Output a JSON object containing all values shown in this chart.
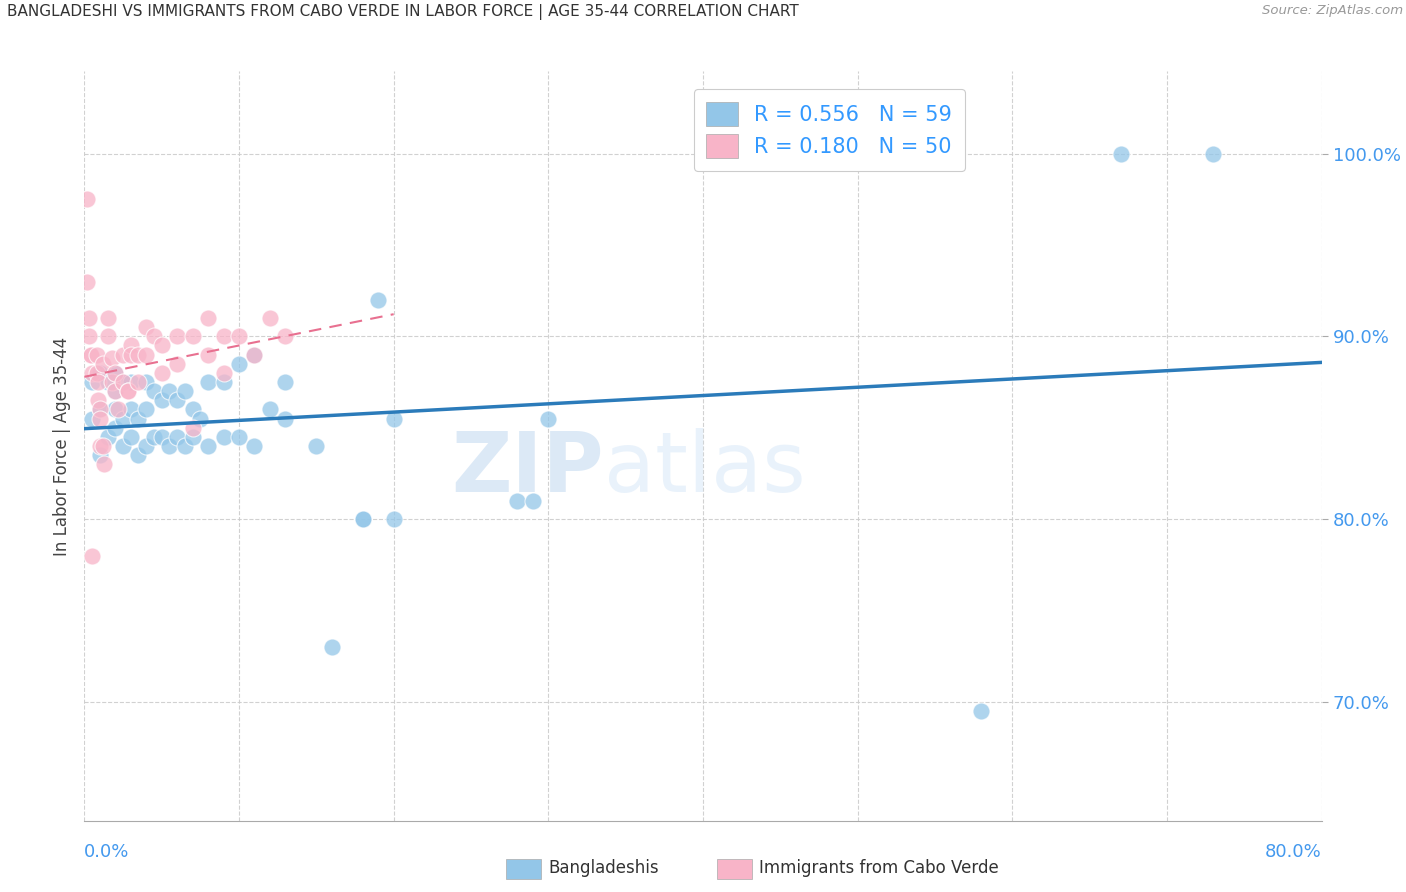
{
  "title": "BANGLADESHI VS IMMIGRANTS FROM CABO VERDE IN LABOR FORCE | AGE 35-44 CORRELATION CHART",
  "source": "Source: ZipAtlas.com",
  "ylabel": "In Labor Force | Age 35-44",
  "right_yticks": [
    0.7,
    0.8,
    0.9,
    1.0
  ],
  "right_yticklabels": [
    "70.0%",
    "80.0%",
    "90.0%",
    "100.0%"
  ],
  "blue_R": 0.556,
  "blue_N": 59,
  "pink_R": 0.18,
  "pink_N": 50,
  "blue_color": "#93c6e8",
  "pink_color": "#f8b4c8",
  "blue_line_color": "#2b7bba",
  "pink_line_color": "#e87090",
  "legend_label_blue": "Bangladeshis",
  "legend_label_pink": "Immigrants from Cabo Verde",
  "watermark_zip": "ZIP",
  "watermark_atlas": "atlas",
  "xmin": 0.0,
  "xmax": 0.8,
  "ymin": 0.635,
  "ymax": 1.045,
  "blue_scatter_x": [
    0.005,
    0.005,
    0.01,
    0.01,
    0.01,
    0.015,
    0.015,
    0.02,
    0.02,
    0.02,
    0.02,
    0.025,
    0.025,
    0.025,
    0.03,
    0.03,
    0.03,
    0.035,
    0.035,
    0.04,
    0.04,
    0.04,
    0.045,
    0.045,
    0.05,
    0.05,
    0.055,
    0.055,
    0.06,
    0.06,
    0.065,
    0.065,
    0.07,
    0.07,
    0.075,
    0.08,
    0.08,
    0.09,
    0.09,
    0.1,
    0.1,
    0.11,
    0.11,
    0.12,
    0.13,
    0.13,
    0.15,
    0.16,
    0.18,
    0.18,
    0.19,
    0.2,
    0.2,
    0.28,
    0.29,
    0.3,
    0.58,
    0.67,
    0.73
  ],
  "blue_scatter_y": [
    0.855,
    0.875,
    0.835,
    0.86,
    0.88,
    0.845,
    0.875,
    0.85,
    0.86,
    0.87,
    0.88,
    0.84,
    0.855,
    0.875,
    0.845,
    0.86,
    0.875,
    0.835,
    0.855,
    0.84,
    0.86,
    0.875,
    0.845,
    0.87,
    0.845,
    0.865,
    0.84,
    0.87,
    0.845,
    0.865,
    0.84,
    0.87,
    0.845,
    0.86,
    0.855,
    0.84,
    0.875,
    0.845,
    0.875,
    0.845,
    0.885,
    0.84,
    0.89,
    0.86,
    0.855,
    0.875,
    0.84,
    0.73,
    0.8,
    0.8,
    0.92,
    0.8,
    0.855,
    0.81,
    0.81,
    0.855,
    0.695,
    1.0,
    1.0
  ],
  "pink_scatter_x": [
    0.002,
    0.002,
    0.003,
    0.003,
    0.004,
    0.004,
    0.005,
    0.005,
    0.008,
    0.008,
    0.009,
    0.009,
    0.01,
    0.01,
    0.01,
    0.012,
    0.012,
    0.013,
    0.015,
    0.015,
    0.018,
    0.018,
    0.02,
    0.02,
    0.022,
    0.025,
    0.025,
    0.028,
    0.028,
    0.03,
    0.03,
    0.035,
    0.035,
    0.04,
    0.04,
    0.045,
    0.05,
    0.05,
    0.06,
    0.06,
    0.07,
    0.07,
    0.08,
    0.08,
    0.09,
    0.09,
    0.1,
    0.11,
    0.12,
    0.13
  ],
  "pink_scatter_y": [
    0.975,
    0.93,
    0.91,
    0.9,
    0.89,
    0.89,
    0.88,
    0.78,
    0.89,
    0.88,
    0.875,
    0.865,
    0.86,
    0.855,
    0.84,
    0.885,
    0.84,
    0.83,
    0.91,
    0.9,
    0.888,
    0.875,
    0.88,
    0.87,
    0.86,
    0.89,
    0.875,
    0.87,
    0.87,
    0.895,
    0.89,
    0.89,
    0.875,
    0.905,
    0.89,
    0.9,
    0.895,
    0.88,
    0.9,
    0.885,
    0.9,
    0.85,
    0.91,
    0.89,
    0.9,
    0.88,
    0.9,
    0.89,
    0.91,
    0.9
  ]
}
